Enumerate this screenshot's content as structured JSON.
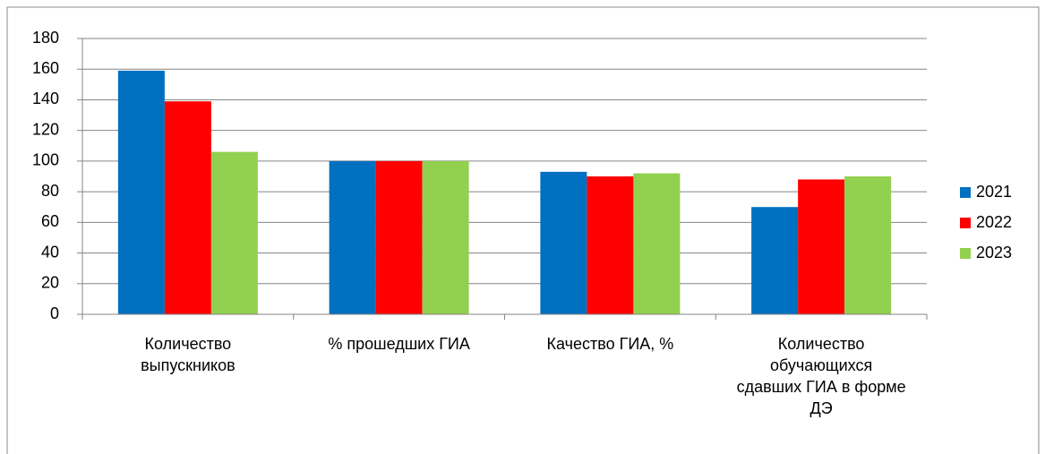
{
  "chart_data": {
    "type": "bar",
    "categories": [
      "Количество выпускников",
      "% прошедших ГИА",
      "Качество ГИА, %",
      "Количество обучающихся сдавших ГИА в форме ДЭ"
    ],
    "series": [
      {
        "name": "2021",
        "color": "#0070c0",
        "values": [
          159,
          100,
          93,
          70
        ]
      },
      {
        "name": "2022",
        "color": "#ff0000",
        "values": [
          139,
          100,
          90,
          88
        ]
      },
      {
        "name": "2023",
        "color": "#92d050",
        "values": [
          106,
          100,
          92,
          90
        ]
      }
    ],
    "ylim": [
      0,
      180
    ],
    "yticks": [
      0,
      20,
      40,
      60,
      80,
      100,
      120,
      140,
      160,
      180
    ],
    "grid": true,
    "legend": "right"
  }
}
